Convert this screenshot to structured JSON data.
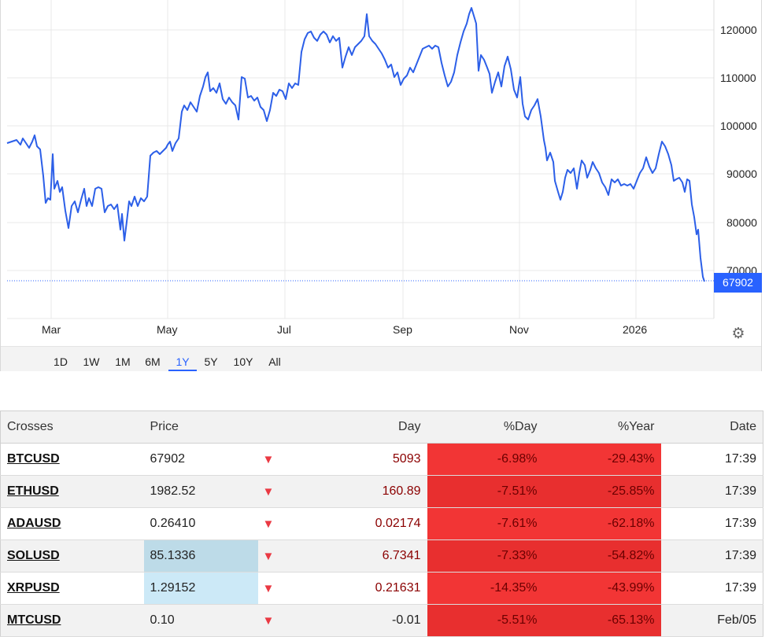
{
  "chart": {
    "x_labels": [
      "Mar",
      "May",
      "Jul",
      "Sep",
      "Nov",
      "2026"
    ],
    "y_labels": [
      "120000",
      "110000",
      "100000",
      "90000",
      "80000",
      "70000"
    ],
    "current_price_label": "67902",
    "colors": {
      "line": "#2c5fe8",
      "price_tag": "#2962ff",
      "grid": "#e8e8e8"
    },
    "settings_icon": "gear-icon",
    "ranges": [
      "1D",
      "1W",
      "1M",
      "6M",
      "1Y",
      "5Y",
      "10Y",
      "All"
    ],
    "active_range": "1Y"
  },
  "table": {
    "headers": {
      "crosses": "Crosses",
      "price": "Price",
      "day": "Day",
      "pct_day": "%Day",
      "pct_year": "%Year",
      "date": "Date"
    },
    "rows": [
      {
        "symbol": "BTCUSD",
        "price": "67902",
        "arrow": "▼",
        "day": "5093",
        "pct_day": "-6.98%",
        "pct_year": "-29.43%",
        "date": "17:39"
      },
      {
        "symbol": "ETHUSD",
        "price": "1982.52",
        "arrow": "▼",
        "day": "160.89",
        "pct_day": "-7.51%",
        "pct_year": "-25.85%",
        "date": "17:39"
      },
      {
        "symbol": "ADAUSD",
        "price": "0.26410",
        "arrow": "▼",
        "day": "0.02174",
        "pct_day": "-7.61%",
        "pct_year": "-62.18%",
        "date": "17:39"
      },
      {
        "symbol": "SOLUSD",
        "price": "85.1336",
        "arrow": "▼",
        "day": "6.7341",
        "pct_day": "-7.33%",
        "pct_year": "-54.82%",
        "date": "17:39"
      },
      {
        "symbol": "XRPUSD",
        "price": "1.29152",
        "arrow": "▼",
        "day": "0.21631",
        "pct_day": "-14.35%",
        "pct_year": "-43.99%",
        "date": "17:39"
      },
      {
        "symbol": "MTCUSD",
        "price": "0.10",
        "arrow": "▼",
        "day": "-0.01",
        "pct_day": "-5.51%",
        "pct_year": "-65.13%",
        "date": "Feb/05"
      }
    ]
  }
}
